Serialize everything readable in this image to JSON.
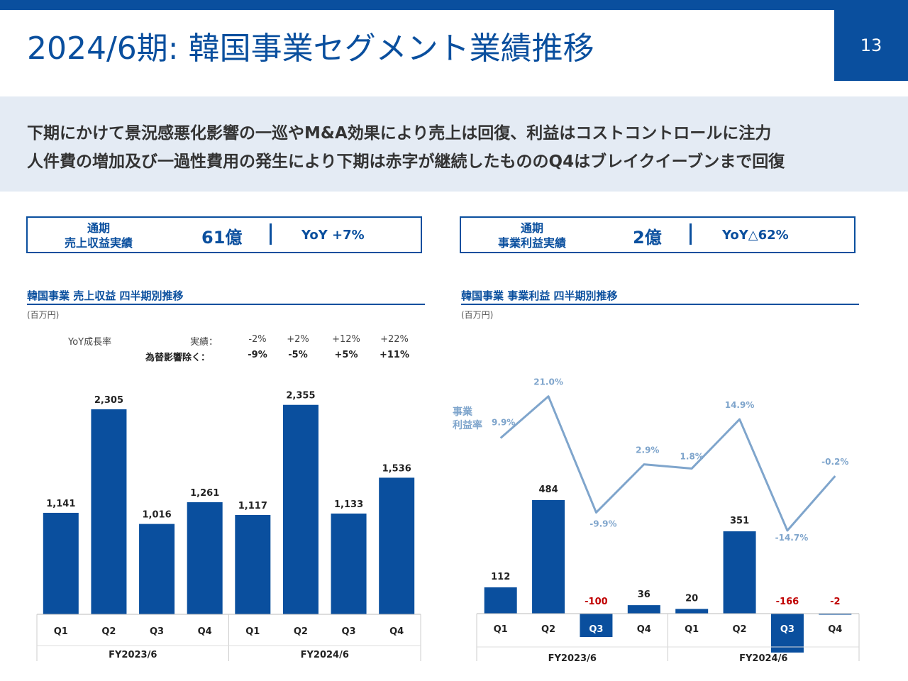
{
  "header": {
    "title": "2024/6期: 韓国事業セグメント業績推移",
    "page_number": "13"
  },
  "summary": {
    "line1": "下期にかけて景況感悪化影響の一巡やM&A効果により売上は回復、利益はコストコントロールに注力",
    "line2": "人件費の増加及び一過性費用の発生により下期は赤字が継続したもののQ4はブレイクイーブンまで回復"
  },
  "kpi_revenue": {
    "label_line1": "通期",
    "label_line2": "売上収益実績",
    "value": "61億",
    "yoy": "YoY +7%"
  },
  "kpi_profit": {
    "label_line1": "通期",
    "label_line2": "事業利益実績",
    "value": "2億",
    "yoy": "YoY△62%"
  },
  "growth": {
    "title": "YoY成長率",
    "actual_label": "実績：",
    "fx_label": "為替影響除く：",
    "actual": [
      "-2%",
      "+2%",
      "+12%",
      "+22%"
    ],
    "fx_excluded": [
      "-9%",
      "-5%",
      "+5%",
      "+11%"
    ]
  },
  "colors": {
    "bar": "#0a4f9e",
    "line": "#7fa5cc",
    "negative_label": "#c00000",
    "summary_bg": "#e4ebf4"
  },
  "chart_data": [
    {
      "type": "bar",
      "title": "韓国事業 売上収益 四半期別推移",
      "unit": "(百万円)",
      "categories": [
        "Q1",
        "Q2",
        "Q3",
        "Q4",
        "Q1",
        "Q2",
        "Q3",
        "Q4"
      ],
      "groups": [
        "FY2023/6",
        "FY2024/6"
      ],
      "values": [
        1141,
        2305,
        1016,
        1261,
        1117,
        2355,
        1133,
        1536
      ],
      "value_labels": [
        "1,141",
        "2,305",
        "1,016",
        "1,261",
        "1,117",
        "2,355",
        "1,133",
        "1,536"
      ],
      "ylim": [
        0,
        2600
      ]
    },
    {
      "type": "bar",
      "title": "韓国事業 事業利益 四半期別推移",
      "unit": "(百万円)",
      "categories": [
        "Q1",
        "Q2",
        "Q3",
        "Q4",
        "Q1",
        "Q2",
        "Q3",
        "Q4"
      ],
      "groups": [
        "FY2023/6",
        "FY2024/6"
      ],
      "values": [
        112,
        484,
        -100,
        36,
        20,
        351,
        -166,
        -2
      ],
      "value_labels": [
        "112",
        "484",
        "-100",
        "36",
        "20",
        "351",
        "-166",
        "-2"
      ],
      "line_series": {
        "name": "事業\n利益率",
        "name_line1": "事業",
        "name_line2": "利益率",
        "values": [
          9.9,
          21.0,
          -9.9,
          2.9,
          1.8,
          14.9,
          -14.7,
          -0.2
        ],
        "labels": [
          "9.9%",
          "21.0%",
          "-9.9%",
          "2.9%",
          "1.8%",
          "14.9%",
          "-14.7%",
          "-0.2%"
        ]
      }
    }
  ]
}
